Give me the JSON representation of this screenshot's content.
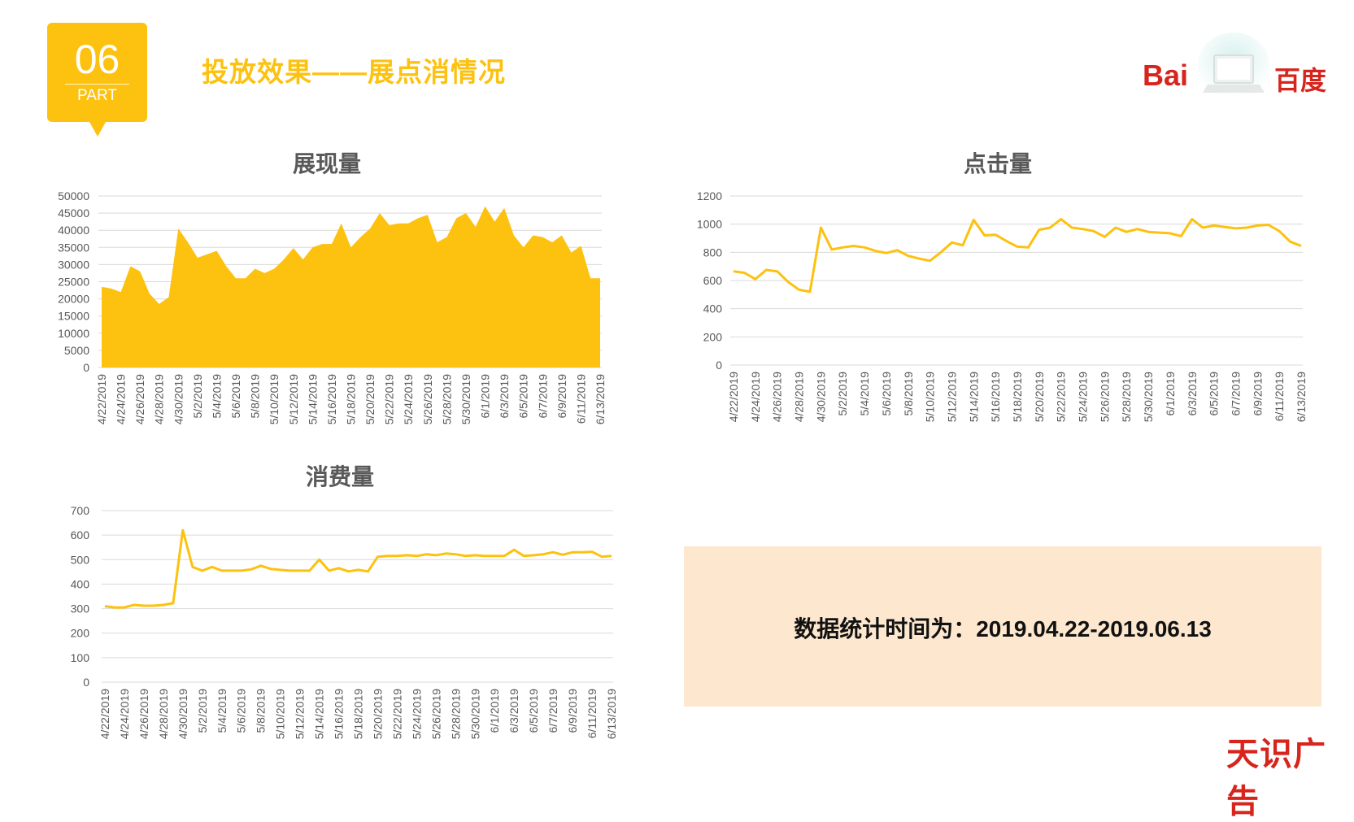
{
  "header": {
    "badge_number": "06",
    "badge_label": "PART",
    "title": "投放效果——展点消情况"
  },
  "logo": {
    "left_text": "Bai",
    "right_text": "百度"
  },
  "colors": {
    "accent": "#FDC10F",
    "brand_red": "#D7251D",
    "info_bg": "#FDE8CF"
  },
  "info_box": {
    "text": "数据统计时间为：2019.04.22-2019.06.13"
  },
  "watermark": "天识广告",
  "chart_data": [
    {
      "type": "area",
      "title": "展现量",
      "xlabel": "",
      "ylabel": "",
      "ylim": [
        0,
        50000
      ],
      "yticks": [
        "0",
        "5000",
        "10000",
        "15000",
        "20000",
        "25000",
        "30000",
        "35000",
        "40000",
        "45000",
        "50000"
      ],
      "x_tick_labels": [
        "4/22/2019",
        "4/24/2019",
        "4/26/2019",
        "4/28/2019",
        "4/30/2019",
        "5/2/2019",
        "5/4/2019",
        "5/6/2019",
        "5/8/2019",
        "5/10/2019",
        "5/12/2019",
        "5/14/2019",
        "5/16/2019",
        "5/18/2019",
        "5/20/2019",
        "5/22/2019",
        "5/24/2019",
        "5/26/2019",
        "5/28/2019",
        "5/30/2019",
        "6/1/2019",
        "6/3/2019",
        "6/5/2019",
        "6/7/2019",
        "6/9/2019",
        "6/11/2019",
        "6/13/2019"
      ],
      "values": [
        23500,
        23000,
        22000,
        29500,
        28000,
        21500,
        18500,
        20500,
        40500,
        36500,
        32000,
        33000,
        34000,
        29500,
        26000,
        26000,
        28800,
        27500,
        28800,
        31500,
        34800,
        31500,
        35000,
        36000,
        36000,
        42000,
        35000,
        38000,
        40500,
        45000,
        41500,
        42000,
        42000,
        43500,
        44500,
        36500,
        38000,
        43500,
        45000,
        41000,
        47000,
        42500,
        46500,
        38500,
        35000,
        38500,
        38000,
        36500,
        38500,
        33500,
        35500,
        26000,
        26000
      ]
    },
    {
      "type": "line",
      "title": "点击量",
      "xlabel": "",
      "ylabel": "",
      "ylim": [
        0,
        1200
      ],
      "yticks": [
        "0",
        "200",
        "400",
        "600",
        "800",
        "1000",
        "1200"
      ],
      "x_tick_labels": [
        "4/22/2019",
        "4/24/2019",
        "4/26/2019",
        "4/28/2019",
        "4/30/2019",
        "5/2/2019",
        "5/4/2019",
        "5/6/2019",
        "5/8/2019",
        "5/10/2019",
        "5/12/2019",
        "5/14/2019",
        "5/16/2019",
        "5/18/2019",
        "5/20/2019",
        "5/22/2019",
        "5/24/2019",
        "5/26/2019",
        "5/28/2019",
        "5/30/2019",
        "6/1/2019",
        "6/3/2019",
        "6/5/2019",
        "6/7/2019",
        "6/9/2019",
        "6/11/2019",
        "6/13/2019"
      ],
      "values": [
        665,
        655,
        610,
        675,
        665,
        590,
        535,
        520,
        975,
        820,
        835,
        845,
        835,
        810,
        795,
        815,
        775,
        755,
        740,
        800,
        870,
        850,
        1030,
        920,
        925,
        880,
        840,
        835,
        960,
        975,
        1035,
        975,
        965,
        950,
        910,
        975,
        945,
        965,
        945,
        940,
        935,
        915,
        1035,
        975,
        990,
        980,
        970,
        975,
        990,
        995,
        950,
        875,
        845
      ]
    },
    {
      "type": "line",
      "title": "消费量",
      "xlabel": "",
      "ylabel": "",
      "ylim": [
        0,
        700
      ],
      "yticks": [
        "0",
        "100",
        "200",
        "300",
        "400",
        "500",
        "600",
        "700"
      ],
      "x_tick_labels": [
        "4/22/2019",
        "4/24/2019",
        "4/26/2019",
        "4/28/2019",
        "4/30/2019",
        "5/2/2019",
        "5/4/2019",
        "5/6/2019",
        "5/8/2019",
        "5/10/2019",
        "5/12/2019",
        "5/14/2019",
        "5/16/2019",
        "5/18/2019",
        "5/20/2019",
        "5/22/2019",
        "5/24/2019",
        "5/26/2019",
        "5/28/2019",
        "5/30/2019",
        "6/1/2019",
        "6/3/2019",
        "6/5/2019",
        "6/7/2019",
        "6/9/2019",
        "6/11/2019",
        "6/13/2019"
      ],
      "values": [
        310,
        305,
        305,
        315,
        312,
        312,
        315,
        322,
        620,
        470,
        455,
        470,
        455,
        455,
        455,
        460,
        475,
        462,
        458,
        455,
        455,
        455,
        500,
        455,
        465,
        452,
        458,
        452,
        512,
        515,
        515,
        518,
        515,
        522,
        518,
        525,
        522,
        515,
        518,
        515,
        515,
        515,
        540,
        515,
        518,
        522,
        530,
        520,
        530,
        530,
        532,
        512,
        515
      ]
    }
  ]
}
